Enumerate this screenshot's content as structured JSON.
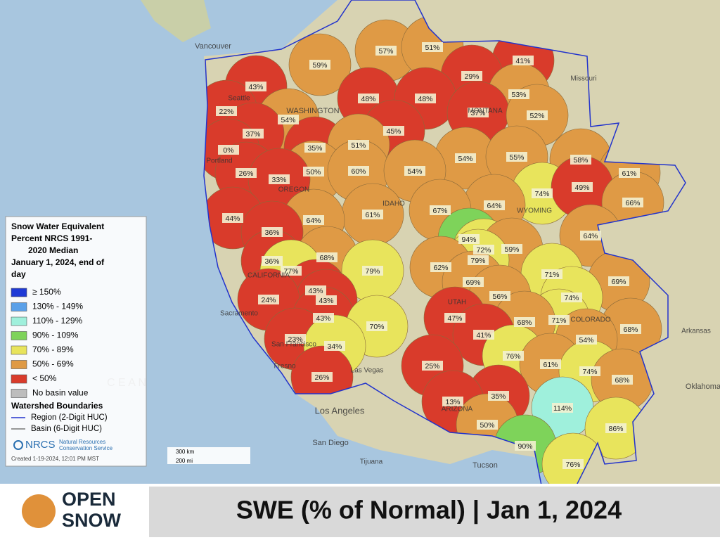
{
  "map": {
    "places": [
      "Vancouver",
      "Seattle",
      "Portland",
      "Sacramento",
      "San Francisco",
      "Fresno",
      "Las Vegas",
      "Los Angeles",
      "San Diego",
      "Tijuana",
      "Tucson",
      "Oklahoma",
      "Missouri",
      "Arkansas",
      "WASHINGTON",
      "OREGON",
      "CALIFORNIA",
      "IDAHO",
      "MONTANA",
      "WYOMING",
      "UTAH",
      "COLORADO",
      "ARIZONA",
      "C E A N"
    ],
    "basins": [
      "59%",
      "57%",
      "51%",
      "41%",
      "43%",
      "29%",
      "53%",
      "22%",
      "48%",
      "48%",
      "37%",
      "52%",
      "54%",
      "37%",
      "45%",
      "0%",
      "35%",
      "51%",
      "54%",
      "55%",
      "58%",
      "61%",
      "26%",
      "50%",
      "60%",
      "54%",
      "33%",
      "74%",
      "49%",
      "66%",
      "64%",
      "61%",
      "67%",
      "44%",
      "64%",
      "36%",
      "94%",
      "64%",
      "72%",
      "59%",
      "68%",
      "36%",
      "79%",
      "77%",
      "79%",
      "62%",
      "71%",
      "69%",
      "69%",
      "43%",
      "56%",
      "74%",
      "43%",
      "24%",
      "43%",
      "47%",
      "71%",
      "68%",
      "68%",
      "70%",
      "41%",
      "54%",
      "23%",
      "34%",
      "76%",
      "61%",
      "74%",
      "25%",
      "26%",
      "68%",
      "35%",
      "13%",
      "114%",
      "86%",
      "50%",
      "90%",
      "76%"
    ]
  },
  "legend": {
    "title": [
      "Snow Water Equivalent",
      "Percent NRCS 1991-",
      "2020 Median",
      "January 1, 2024, end of",
      "day"
    ],
    "items": [
      "≥ 150%",
      "130% - 149%",
      "110% - 129%",
      "90% - 109%",
      "70% - 89%",
      "50% - 69%",
      "< 50%",
      "No basin value"
    ],
    "boundaries_title": "Watershed Boundaries",
    "boundaries": [
      "Region (2-Digit HUC)",
      "Basin (6-Digit HUC)"
    ],
    "agency": "NRCS",
    "agency_full": [
      "Natural Resources",
      "Conservation Service"
    ],
    "created": "Created 1-19-2024, 12:01 PM MST"
  },
  "scale": [
    "300 km",
    "200 mi"
  ],
  "footer": {
    "logo": [
      "OPEN",
      "SNOW"
    ],
    "title": "SWE (% of Normal) | Jan 1, 2024"
  }
}
